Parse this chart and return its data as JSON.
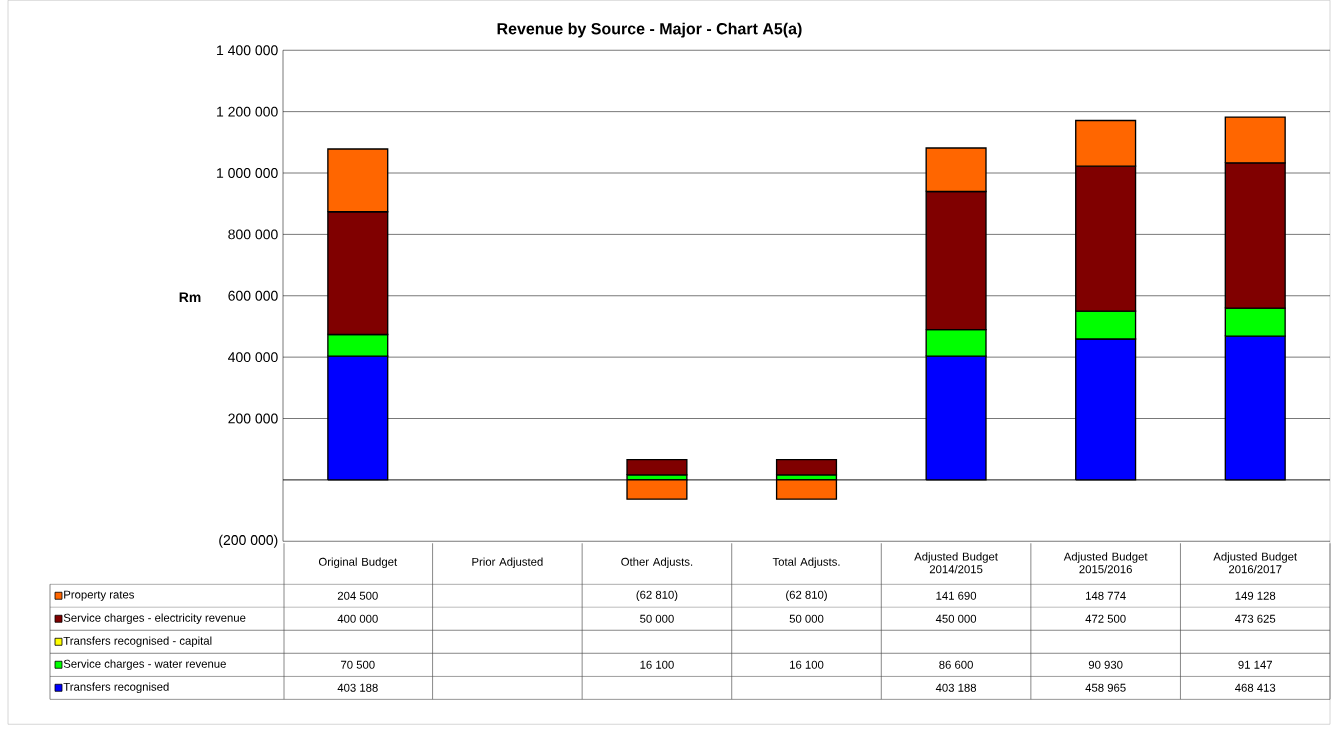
{
  "chart_data": {
    "type": "bar",
    "stacked": true,
    "title": "Revenue by Source - Major - Chart A5(a)",
    "ylabel": "Rm",
    "categories": [
      "Original Budget",
      "Prior Adjusted",
      "Other Adjusts.",
      "Total Adjusts.",
      "Adjusted Budget 2014/2015",
      "Adjusted Budget 2015/2016",
      "Adjusted Budget 2016/2017"
    ],
    "series": [
      {
        "name": "Transfers recognised",
        "color": "#0000ff",
        "values": [
          403188,
          null,
          null,
          null,
          403188,
          458965,
          468413
        ],
        "value_labels": [
          "403 188",
          null,
          null,
          null,
          "403 188",
          "458 965",
          "468 413"
        ]
      },
      {
        "name": "Service charges - water revenue",
        "color": "#00ff00",
        "values": [
          70500,
          null,
          16100,
          16100,
          86600,
          90930,
          91147
        ],
        "value_labels": [
          "70 500",
          null,
          "16 100",
          "16 100",
          "86 600",
          "90 930",
          "91 147"
        ]
      },
      {
        "name": "Transfers recognised - capital",
        "color": "#ffff00",
        "values": [
          null,
          null,
          null,
          null,
          null,
          null,
          null
        ],
        "value_labels": [
          null,
          null,
          null,
          null,
          null,
          null,
          null
        ]
      },
      {
        "name": "Service charges - electricity revenue",
        "color": "#800000",
        "values": [
          400000,
          null,
          50000,
          50000,
          450000,
          472500,
          473625
        ],
        "value_labels": [
          "400 000",
          null,
          "50 000",
          "50 000",
          "450 000",
          "472 500",
          "473 625"
        ]
      },
      {
        "name": "Property rates",
        "color": "#ff6600",
        "values": [
          204500,
          null,
          -62810,
          -62810,
          141690,
          148774,
          149128
        ],
        "value_labels": [
          "204 500",
          null,
          "(62 810)",
          "(62 810)",
          "141 690",
          "148 774",
          "149 128"
        ]
      }
    ],
    "ylim": [
      -200000,
      1400000
    ],
    "yticks": [
      {
        "value": -200000,
        "label": "(200 000)"
      },
      {
        "value": 0,
        "label": null
      },
      {
        "value": 200000,
        "label": "200 000"
      },
      {
        "value": 400000,
        "label": "400 000"
      },
      {
        "value": 600000,
        "label": "600 000"
      },
      {
        "value": 800000,
        "label": "800 000"
      },
      {
        "value": 1000000,
        "label": "1 000 000"
      },
      {
        "value": 1200000,
        "label": "1 200 000"
      },
      {
        "value": 1400000,
        "label": "1 400 000"
      }
    ],
    "grid": "y",
    "legend": "bottom"
  }
}
